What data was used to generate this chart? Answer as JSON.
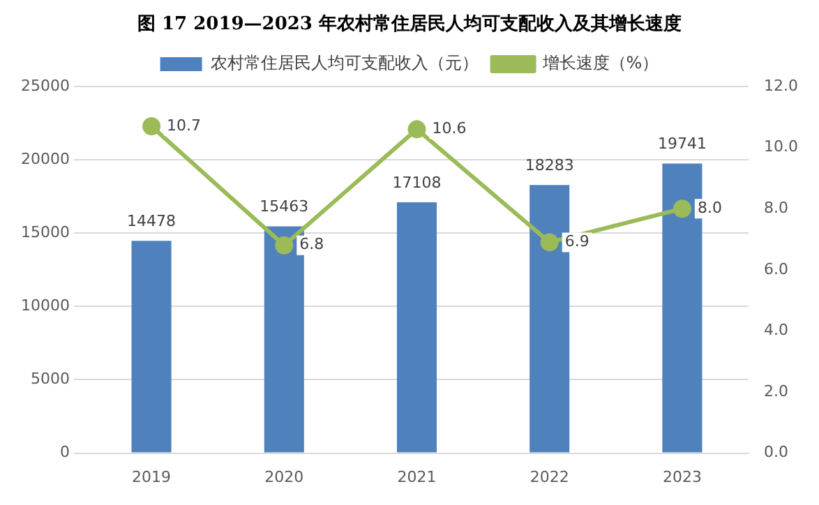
{
  "chart_data": {
    "type": "bar",
    "title": "图 17 2019—2023 年农村常住居民人均可支配收入及其增长速度",
    "categories": [
      "2019",
      "2020",
      "2021",
      "2022",
      "2023"
    ],
    "series": [
      {
        "name": "农村常住居民人均可支配收入（元）",
        "color": "#4f81bd",
        "values": [
          14478,
          15463,
          17108,
          18283,
          19741
        ],
        "value_labels": [
          "14478",
          "15463",
          "17108",
          "18283",
          "19741"
        ]
      },
      {
        "name": "增长速度（%）",
        "type": "line",
        "axis": "y2",
        "color": "#9bbb59",
        "values": [
          10.7,
          6.8,
          10.6,
          6.9,
          8.0
        ],
        "value_labels": [
          "10.7",
          "6.8",
          "10.6",
          "6.9",
          "8.0"
        ]
      }
    ],
    "ylim": [
      0,
      25000
    ],
    "yticks": [
      0,
      5000,
      10000,
      15000,
      20000,
      25000
    ],
    "y2lim": [
      0,
      12
    ],
    "y2ticks": [
      {
        "value": 0,
        "label": "0.0"
      },
      {
        "value": 2,
        "label": "2.0"
      },
      {
        "value": 4,
        "label": "4.0"
      },
      {
        "value": 6,
        "label": "6.0"
      },
      {
        "value": 8,
        "label": "8.0"
      },
      {
        "value": 10,
        "label": "10.0"
      },
      {
        "value": 12,
        "label": "12.0"
      }
    ],
    "grid": "y",
    "legend": "top",
    "marker": "circle",
    "line_style": "solid"
  }
}
